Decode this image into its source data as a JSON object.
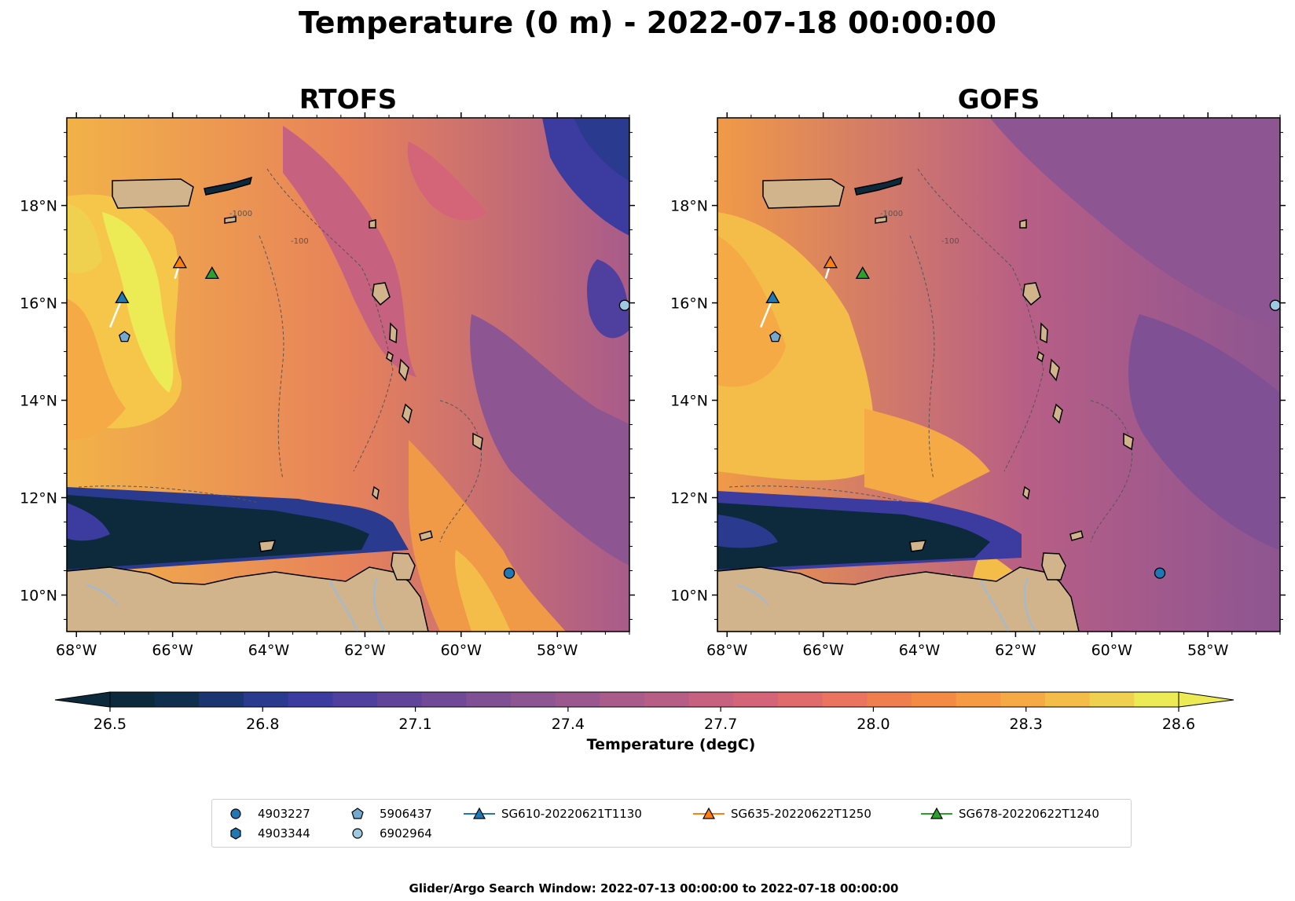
{
  "figure": {
    "title": "Temperature (0 m) - 2022-07-18 00:00:00",
    "footer": "Glider/Argo Search Window: 2022-07-13 00:00:00 to 2022-07-18 00:00:00"
  },
  "panels": [
    {
      "title": "RTOFS"
    },
    {
      "title": "GOFS"
    }
  ],
  "map": {
    "extent": {
      "lon_min": -68.2,
      "lon_max": -56.5,
      "lat_min": 9.25,
      "lat_max": 19.8
    },
    "x_ticks": [
      {
        "value": -68,
        "label": "68°W"
      },
      {
        "value": -66,
        "label": "66°W"
      },
      {
        "value": -64,
        "label": "64°W"
      },
      {
        "value": -62,
        "label": "62°W"
      },
      {
        "value": -60,
        "label": "60°W"
      },
      {
        "value": -58,
        "label": "58°W"
      }
    ],
    "y_ticks": [
      {
        "value": 18,
        "label": "18°N"
      },
      {
        "value": 16,
        "label": "16°N"
      },
      {
        "value": 14,
        "label": "14°N"
      },
      {
        "value": 12,
        "label": "12°N"
      },
      {
        "value": 10,
        "label": "10°N"
      }
    ],
    "contour_labels": [
      "-1000",
      "-100"
    ],
    "land_color": "#d2b48c",
    "river_color": "#9dbbd8"
  },
  "colorbar": {
    "label": "Temperature (degC)",
    "min": 26.5,
    "max": 28.6,
    "ticks": [
      {
        "value": 26.5,
        "label": "26.5"
      },
      {
        "value": 26.8,
        "label": "26.8"
      },
      {
        "value": 27.1,
        "label": "27.1"
      },
      {
        "value": 27.4,
        "label": "27.4"
      },
      {
        "value": 27.7,
        "label": "27.7"
      },
      {
        "value": 28.0,
        "label": "28.0"
      },
      {
        "value": 28.3,
        "label": "28.3"
      },
      {
        "value": 28.6,
        "label": "28.6"
      }
    ],
    "colors": [
      "#0c2a3b",
      "#102f4f",
      "#1a3570",
      "#2a3a8e",
      "#3c3b9f",
      "#4f3f9f",
      "#60449a",
      "#714a97",
      "#7f5093",
      "#8d5591",
      "#9b588e",
      "#a95b8a",
      "#b75e86",
      "#c66180",
      "#d46578",
      "#e06b6d",
      "#ea7460",
      "#f07f50",
      "#f48b45",
      "#f69a43",
      "#f5aa45",
      "#f4bd49",
      "#efd04f",
      "#ecea55"
    ]
  },
  "legend": {
    "items": [
      {
        "label": "4903227",
        "marker": "circle",
        "color": "#1f77b4"
      },
      {
        "label": "4903344",
        "marker": "hexagon",
        "color": "#1f77b4"
      },
      {
        "label": "5906437",
        "marker": "pentagon",
        "color": "#74a9cf"
      },
      {
        "label": "6902964",
        "marker": "circle",
        "color": "#9ecae1"
      },
      {
        "label": "SG610-20220621T1130",
        "marker": "triangle-line",
        "color": "#1f77b4"
      },
      {
        "label": "SG635-20220622T1250",
        "marker": "triangle-line",
        "color": "#ff7f0e"
      },
      {
        "label": "SG678-20220622T1240",
        "marker": "triangle-line",
        "color": "#2ca02c"
      }
    ]
  },
  "markers": [
    {
      "id": "4903227",
      "marker": "circle",
      "color": "#1f77b4",
      "lon": -59.0,
      "lat": 10.45
    },
    {
      "id": "5906437",
      "marker": "pentagon",
      "color": "#74a9cf",
      "lon": -67.0,
      "lat": 15.3
    },
    {
      "id": "6902964",
      "marker": "circle",
      "color": "#9ecae1",
      "lon": -56.6,
      "lat": 15.95
    },
    {
      "id": "SG610-20220621T1130",
      "marker": "triangle",
      "color": "#1f77b4",
      "lon": -67.05,
      "lat": 16.1,
      "track": [
        [
          -67.3,
          15.5
        ],
        [
          -67.05,
          16.1
        ]
      ]
    },
    {
      "id": "SG635-20220622T1250",
      "marker": "triangle",
      "color": "#ff7f0e",
      "lon": -65.85,
      "lat": 16.82,
      "track": [
        [
          -65.95,
          16.5
        ],
        [
          -65.85,
          16.82
        ]
      ]
    },
    {
      "id": "SG678-20220622T1240",
      "marker": "triangle",
      "color": "#2ca02c",
      "lon": -65.18,
      "lat": 16.6,
      "track": []
    }
  ]
}
